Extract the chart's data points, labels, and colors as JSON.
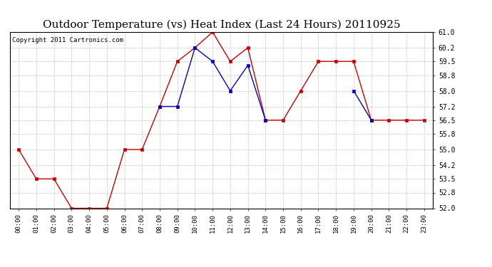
{
  "title": "Outdoor Temperature (vs) Heat Index (Last 24 Hours) 20110925",
  "copyright_text": "Copyright 2011 Cartronics.com",
  "hours": [
    "00:00",
    "01:00",
    "02:00",
    "03:00",
    "04:00",
    "05:00",
    "06:00",
    "07:00",
    "08:00",
    "09:00",
    "10:00",
    "11:00",
    "12:00",
    "13:00",
    "14:00",
    "15:00",
    "16:00",
    "17:00",
    "18:00",
    "19:00",
    "20:00",
    "21:00",
    "22:00",
    "23:00"
  ],
  "red_data": [
    55.0,
    53.5,
    53.5,
    52.0,
    52.0,
    52.0,
    55.0,
    55.0,
    57.2,
    59.5,
    60.2,
    61.0,
    59.5,
    60.2,
    56.5,
    56.5,
    58.0,
    59.5,
    59.5,
    59.5,
    56.5,
    56.5,
    56.5,
    56.5
  ],
  "blue_data": [
    null,
    null,
    null,
    null,
    null,
    null,
    null,
    null,
    57.2,
    57.2,
    60.2,
    59.5,
    58.0,
    59.3,
    56.5,
    null,
    null,
    null,
    null,
    58.0,
    56.5,
    null,
    null,
    null
  ],
  "ylim": [
    52.0,
    61.0
  ],
  "yticks": [
    52.0,
    52.8,
    53.5,
    54.2,
    55.0,
    55.8,
    56.5,
    57.2,
    58.0,
    58.8,
    59.5,
    60.2,
    61.0
  ],
  "red_color": "#cc0000",
  "blue_color": "#0000cc",
  "bg_color": "#ffffff",
  "plot_bg_color": "#ffffff",
  "grid_color": "#bbbbbb",
  "title_fontsize": 11,
  "copyright_fontsize": 6.5,
  "border_color": "#000000"
}
